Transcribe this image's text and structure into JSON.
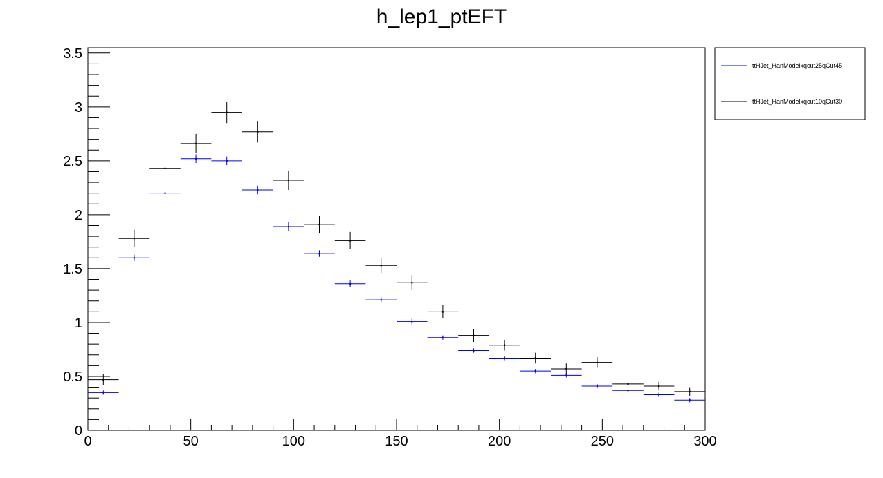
{
  "chart_data": {
    "type": "scatter",
    "title": "h_lep1_ptEFT",
    "xlabel": "",
    "ylabel": "",
    "xlim": [
      0,
      300
    ],
    "ylim": [
      0,
      3.55
    ],
    "x_ticks": [
      "0",
      "50",
      "100",
      "150",
      "200",
      "250",
      "300"
    ],
    "y_ticks": [
      "0",
      "0.5",
      "1",
      "1.5",
      "2",
      "2.5",
      "3",
      "3.5"
    ],
    "bin_width": 15,
    "x": [
      7.5,
      22.5,
      37.5,
      52.5,
      67.5,
      82.5,
      97.5,
      112.5,
      127.5,
      142.5,
      157.5,
      172.5,
      187.5,
      202.5,
      217.5,
      232.5,
      247.5,
      262.5,
      277.5,
      292.5
    ],
    "series": [
      {
        "name": "ttHJet_HanModelxqcut25qCut45",
        "color": "#0000ff",
        "values": [
          0.35,
          1.6,
          2.2,
          2.52,
          2.5,
          2.23,
          1.89,
          1.64,
          1.36,
          1.21,
          1.01,
          0.86,
          0.74,
          0.67,
          0.55,
          0.51,
          0.41,
          0.37,
          0.33,
          0.28
        ],
        "errors": [
          0.02,
          0.03,
          0.04,
          0.04,
          0.04,
          0.04,
          0.04,
          0.03,
          0.03,
          0.03,
          0.03,
          0.02,
          0.02,
          0.02,
          0.02,
          0.02,
          0.02,
          0.02,
          0.02,
          0.02
        ]
      },
      {
        "name": "ttHJet_HanModelxqcut10qCut30",
        "color": "#000000",
        "values": [
          0.47,
          1.78,
          2.43,
          2.66,
          2.95,
          2.77,
          2.32,
          1.91,
          1.76,
          1.53,
          1.37,
          1.1,
          0.88,
          0.79,
          0.67,
          0.57,
          0.63,
          0.43,
          0.41,
          0.36
        ],
        "errors": [
          0.05,
          0.08,
          0.09,
          0.09,
          0.1,
          0.1,
          0.09,
          0.08,
          0.08,
          0.07,
          0.07,
          0.06,
          0.06,
          0.05,
          0.05,
          0.05,
          0.05,
          0.04,
          0.04,
          0.04
        ]
      }
    ],
    "legend_position": "top-right, outside plot",
    "grid": false
  }
}
